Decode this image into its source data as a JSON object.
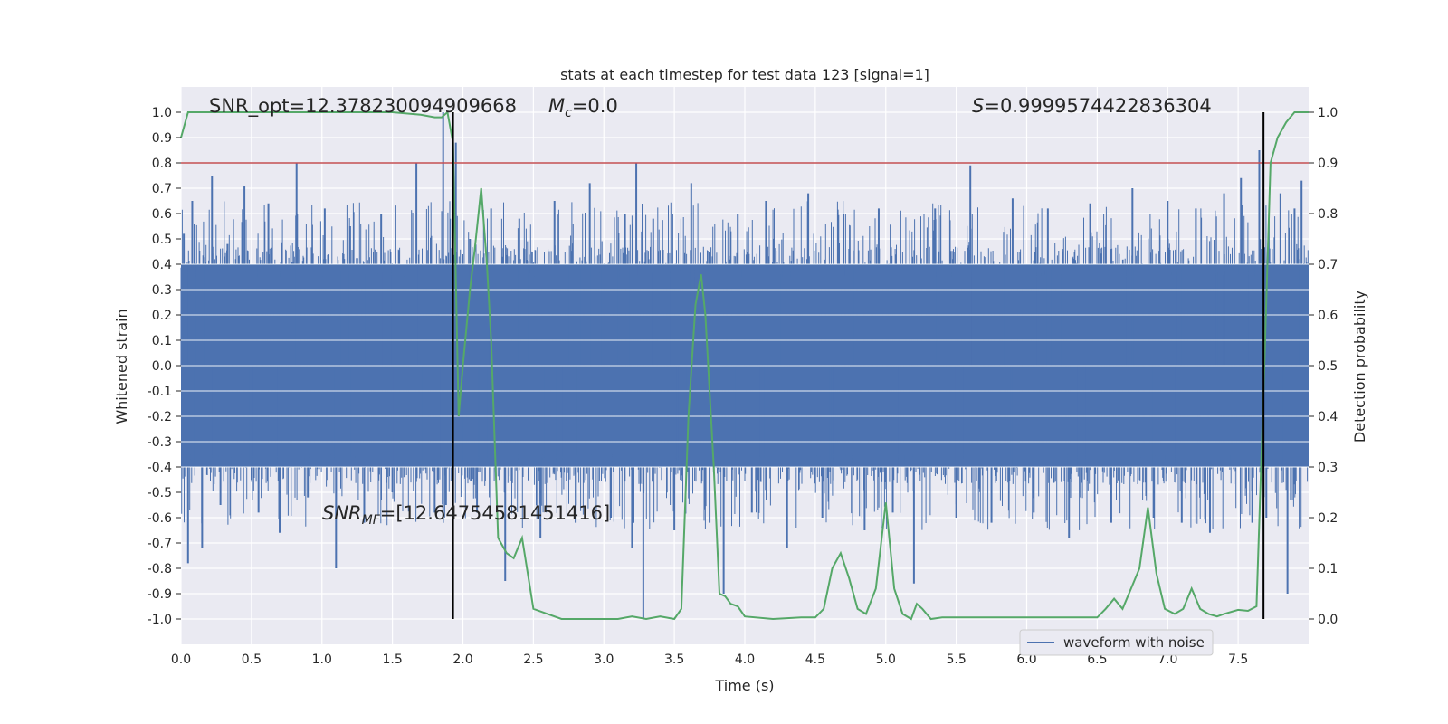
{
  "chart_data": {
    "type": "line",
    "title": "stats at each timestep for test data 123 [signal=1]",
    "xlabel": "Time (s)",
    "ylabel": "Whitened strain",
    "y2label": "Detection probability",
    "xlim": [
      0.0,
      8.0
    ],
    "ylim": [
      -1.1,
      1.1
    ],
    "y2lim": [
      -0.05,
      1.05
    ],
    "xticks": [
      "0.0",
      "0.5",
      "1.0",
      "1.5",
      "2.0",
      "2.5",
      "3.0",
      "3.5",
      "4.0",
      "4.5",
      "5.0",
      "5.5",
      "6.0",
      "6.5",
      "7.0",
      "7.5"
    ],
    "xtick_values": [
      0.0,
      0.5,
      1.0,
      1.5,
      2.0,
      2.5,
      3.0,
      3.5,
      4.0,
      4.5,
      5.0,
      5.5,
      6.0,
      6.5,
      7.0,
      7.5
    ],
    "yticks": [
      "1.0",
      "0.9",
      "0.8",
      "0.7",
      "0.6",
      "0.5",
      "0.4",
      "0.3",
      "0.2",
      "0.1",
      "0.0",
      "-0.1",
      "-0.2",
      "-0.3",
      "-0.4",
      "-0.5",
      "-0.6",
      "-0.7",
      "-0.8",
      "-0.9",
      "-1.0"
    ],
    "ytick_values": [
      1.0,
      0.9,
      0.8,
      0.7,
      0.6,
      0.5,
      0.4,
      0.3,
      0.2,
      0.1,
      0.0,
      -0.1,
      -0.2,
      -0.3,
      -0.4,
      -0.5,
      -0.6,
      -0.7,
      -0.8,
      -0.9,
      -1.0
    ],
    "y2ticks": [
      "1.0",
      "0.9",
      "0.8",
      "0.7",
      "0.6",
      "0.5",
      "0.4",
      "0.3",
      "0.2",
      "0.1",
      "0.0"
    ],
    "y2tick_values": [
      1.0,
      0.9,
      0.8,
      0.7,
      0.6,
      0.5,
      0.4,
      0.3,
      0.2,
      0.1,
      0.0
    ],
    "grid": true,
    "legend_placement": "lower-right",
    "annotations": {
      "snr_opt": "SNR_opt=12.378230094909668",
      "mc_symbol": "M",
      "mc_sub": "c",
      "mc_value": "=0.0",
      "s_symbol": "S",
      "s_value": "=0.9999574422836304",
      "snr_mf_symbol": "SNR",
      "snr_mf_sub": "MF",
      "snr_mf_value": "=[12.64754581451416]"
    },
    "vertical_lines_x": [
      1.93,
      7.68
    ],
    "vertical_lines_yrange": [
      -1.0,
      1.0
    ],
    "threshold_y2": 0.9,
    "series": [
      {
        "name": "waveform with noise",
        "style": "noise-spikes",
        "envelope_y": [
          -0.4,
          0.4
        ],
        "peak_spikes": [
          [
            0.02,
            0.52
          ],
          [
            0.05,
            -0.78
          ],
          [
            0.08,
            0.65
          ],
          [
            0.15,
            -0.72
          ],
          [
            0.22,
            0.75
          ],
          [
            0.28,
            -0.55
          ],
          [
            0.33,
            0.48
          ],
          [
            0.45,
            0.71
          ],
          [
            0.55,
            -0.58
          ],
          [
            0.62,
            0.64
          ],
          [
            0.7,
            -0.66
          ],
          [
            0.82,
            0.8
          ],
          [
            0.9,
            -0.52
          ],
          [
            1.02,
            0.62
          ],
          [
            1.1,
            -0.8
          ],
          [
            1.2,
            0.55
          ],
          [
            1.3,
            -0.62
          ],
          [
            1.42,
            0.6
          ],
          [
            1.5,
            -0.5
          ],
          [
            1.67,
            0.8
          ],
          [
            1.8,
            -0.58
          ],
          [
            1.86,
            1.0
          ],
          [
            1.88,
            -0.55
          ],
          [
            1.93,
            -0.61
          ],
          [
            1.95,
            0.88
          ],
          [
            2.05,
            0.5
          ],
          [
            2.1,
            -0.58
          ],
          [
            2.2,
            0.62
          ],
          [
            2.3,
            -0.85
          ],
          [
            2.4,
            0.58
          ],
          [
            2.55,
            -0.68
          ],
          [
            2.65,
            0.65
          ],
          [
            2.8,
            -0.62
          ],
          [
            2.9,
            0.72
          ],
          [
            3.05,
            -0.6
          ],
          [
            3.15,
            0.6
          ],
          [
            3.2,
            -0.72
          ],
          [
            3.23,
            0.8
          ],
          [
            3.28,
            -1.0
          ],
          [
            3.35,
            0.58
          ],
          [
            3.5,
            -0.65
          ],
          [
            3.62,
            0.72
          ],
          [
            3.75,
            -0.62
          ],
          [
            3.85,
            -0.9
          ],
          [
            3.95,
            0.6
          ],
          [
            4.05,
            -0.58
          ],
          [
            4.15,
            0.65
          ],
          [
            4.3,
            -0.72
          ],
          [
            4.45,
            0.68
          ],
          [
            4.55,
            -0.6
          ],
          [
            4.7,
            0.6
          ],
          [
            4.85,
            -0.65
          ],
          [
            4.95,
            0.62
          ],
          [
            5.05,
            -0.58
          ],
          [
            5.2,
            -0.86
          ],
          [
            5.35,
            0.62
          ],
          [
            5.5,
            -0.6
          ],
          [
            5.6,
            0.79
          ],
          [
            5.75,
            -0.62
          ],
          [
            5.9,
            0.66
          ],
          [
            6.05,
            -0.58
          ],
          [
            6.15,
            0.62
          ],
          [
            6.3,
            -0.68
          ],
          [
            6.45,
            0.64
          ],
          [
            6.6,
            -0.62
          ],
          [
            6.75,
            0.7
          ],
          [
            6.9,
            -0.6
          ],
          [
            7.0,
            0.65
          ],
          [
            7.1,
            -0.62
          ],
          [
            7.2,
            0.62
          ],
          [
            7.3,
            -0.66
          ],
          [
            7.4,
            0.68
          ],
          [
            7.52,
            0.74
          ],
          [
            7.6,
            -0.62
          ],
          [
            7.65,
            0.85
          ],
          [
            7.7,
            -0.6
          ],
          [
            7.8,
            0.68
          ],
          [
            7.85,
            -0.9
          ],
          [
            7.9,
            0.62
          ],
          [
            7.95,
            0.73
          ]
        ]
      },
      {
        "name": "",
        "style": "line",
        "axis": "right",
        "x": [
          0.0,
          0.05,
          0.1,
          0.5,
          1.0,
          1.5,
          1.7,
          1.8,
          1.85,
          1.89,
          1.93,
          1.97,
          2.0,
          2.05,
          2.08,
          2.13,
          2.17,
          2.2,
          2.25,
          2.31,
          2.36,
          2.42,
          2.5,
          2.6,
          2.7,
          3.0,
          3.1,
          3.2,
          3.3,
          3.4,
          3.5,
          3.55,
          3.6,
          3.65,
          3.69,
          3.72,
          3.78,
          3.82,
          3.86,
          3.9,
          3.95,
          4.0,
          4.2,
          4.4,
          4.5,
          4.56,
          4.62,
          4.68,
          4.74,
          4.8,
          4.86,
          4.93,
          5.0,
          5.06,
          5.12,
          5.18,
          5.22,
          5.26,
          5.32,
          5.4,
          5.6,
          5.8,
          6.0,
          6.2,
          6.4,
          6.5,
          6.56,
          6.62,
          6.68,
          6.74,
          6.8,
          6.86,
          6.92,
          6.98,
          7.05,
          7.11,
          7.17,
          7.23,
          7.29,
          7.35,
          7.4,
          7.5,
          7.57,
          7.63,
          7.68,
          7.73,
          7.78,
          7.84,
          7.9,
          7.96,
          8.0
        ],
        "y": [
          0.95,
          1.0,
          1.0,
          1.0,
          1.0,
          1.0,
          0.995,
          0.99,
          0.99,
          1.0,
          0.94,
          0.4,
          0.5,
          0.65,
          0.72,
          0.85,
          0.7,
          0.55,
          0.16,
          0.13,
          0.12,
          0.16,
          0.02,
          0.01,
          0.0,
          0.0,
          0.0,
          0.005,
          0.0,
          0.005,
          0.0,
          0.02,
          0.4,
          0.62,
          0.68,
          0.6,
          0.3,
          0.05,
          0.045,
          0.03,
          0.025,
          0.005,
          0.0,
          0.003,
          0.003,
          0.02,
          0.1,
          0.13,
          0.08,
          0.02,
          0.01,
          0.06,
          0.23,
          0.06,
          0.01,
          0.0,
          0.03,
          0.02,
          0.0,
          0.003,
          0.003,
          0.003,
          0.003,
          0.003,
          0.003,
          0.003,
          0.02,
          0.04,
          0.02,
          0.06,
          0.1,
          0.22,
          0.09,
          0.02,
          0.01,
          0.02,
          0.06,
          0.02,
          0.01,
          0.005,
          0.01,
          0.018,
          0.016,
          0.025,
          0.45,
          0.9,
          0.95,
          0.98,
          1.0,
          1.0,
          1.0
        ]
      }
    ]
  }
}
